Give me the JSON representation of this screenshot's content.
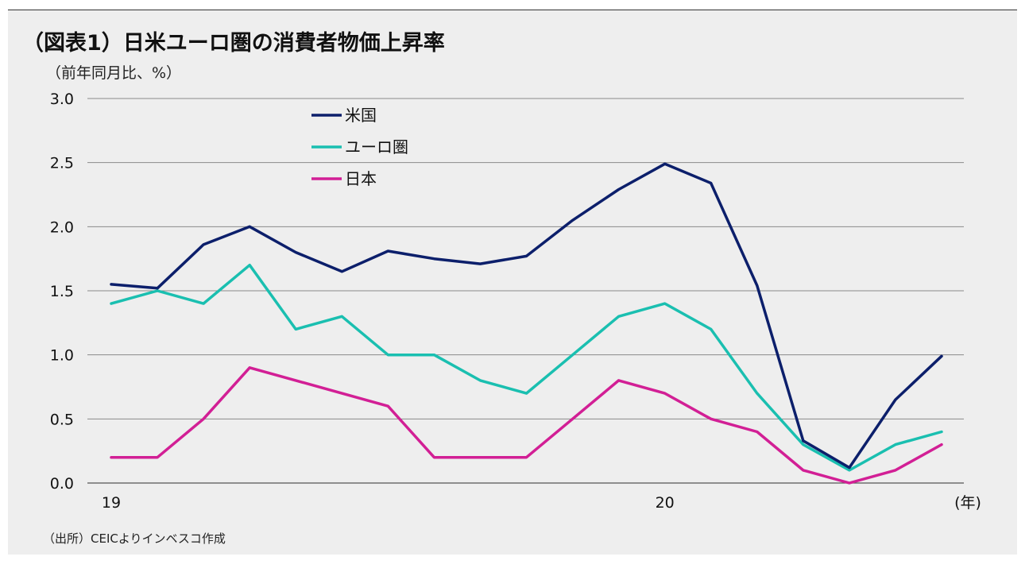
{
  "title": "（図表1）日米ユーロ圏の消費者物価上昇率",
  "unit_label": "（前年同月比、%）",
  "source": "（出所）CEICよりインベスコ作成",
  "chart_data": {
    "type": "line",
    "x_tick_labels": [
      {
        "index": 0,
        "label": "19"
      },
      {
        "index": 12,
        "label": "20"
      }
    ],
    "x_unit": "(年)",
    "ylim": [
      0,
      3.0
    ],
    "y_ticks": [
      "0.0",
      "0.5",
      "1.0",
      "1.5",
      "2.0",
      "2.5",
      "3.0"
    ],
    "grid": true,
    "legend_position": "top-left",
    "series": [
      {
        "name": "米国",
        "color": "#0c1f6b",
        "values": [
          1.55,
          1.52,
          1.86,
          2.0,
          1.8,
          1.65,
          1.81,
          1.75,
          1.71,
          1.77,
          2.05,
          2.29,
          2.49,
          2.34,
          1.54,
          0.33,
          0.12,
          0.65,
          0.99
        ]
      },
      {
        "name": "ユーロ圏",
        "color": "#1abfb0",
        "values": [
          1.4,
          1.5,
          1.4,
          1.7,
          1.2,
          1.3,
          1.0,
          1.0,
          0.8,
          0.7,
          1.0,
          1.3,
          1.4,
          1.2,
          0.7,
          0.3,
          0.1,
          0.3,
          0.4
        ]
      },
      {
        "name": "日本",
        "color": "#d21f95",
        "values": [
          0.2,
          0.2,
          0.5,
          0.9,
          0.8,
          0.7,
          0.6,
          0.2,
          0.2,
          0.2,
          0.5,
          0.8,
          0.7,
          0.5,
          0.4,
          0.1,
          0.0,
          0.1,
          0.3
        ]
      }
    ]
  }
}
